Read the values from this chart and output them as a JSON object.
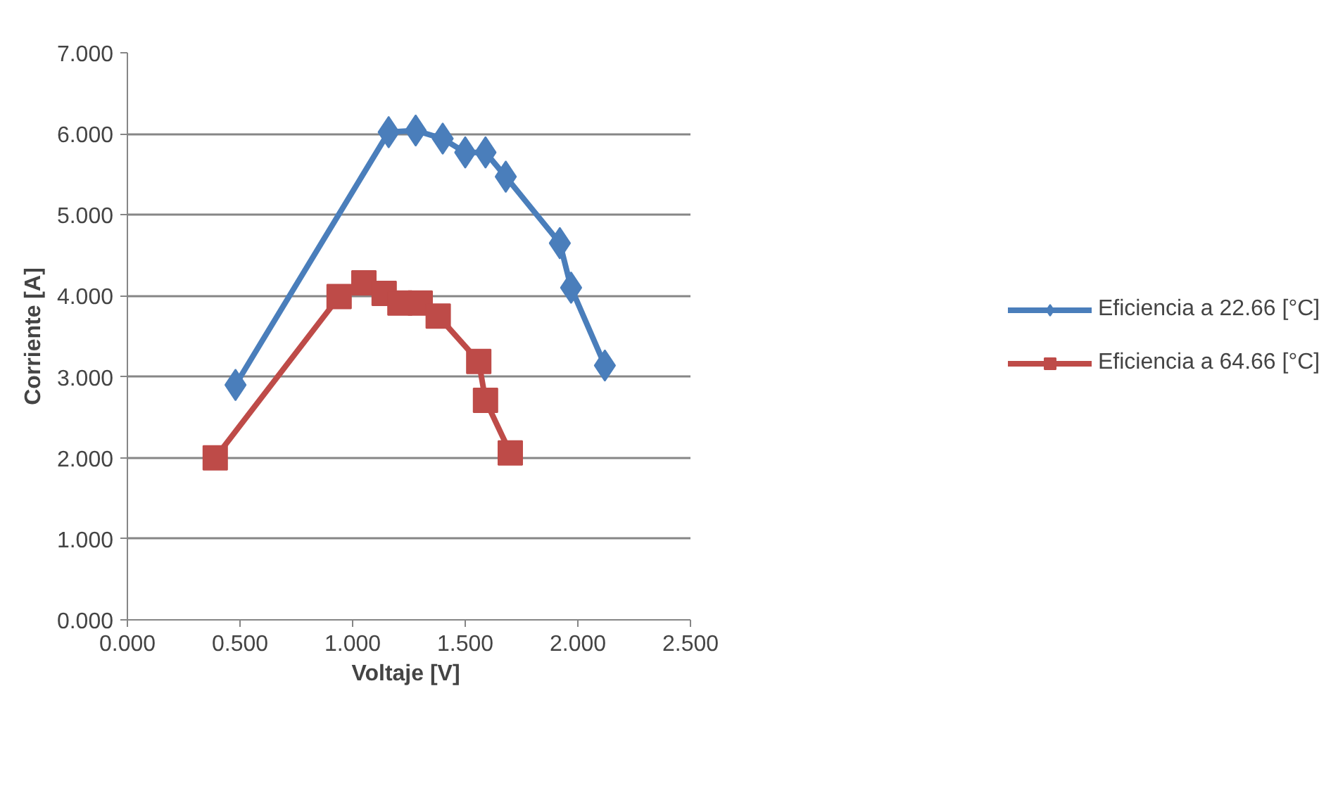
{
  "chart_data": {
    "type": "line",
    "xlabel": "Voltaje  [V]",
    "ylabel": "Corriente [A]",
    "xlim": [
      0,
      2.5
    ],
    "ylim": [
      0,
      7
    ],
    "xticks": [
      {
        "value": 0,
        "label": "0.000"
      },
      {
        "value": 0.5,
        "label": "0.500"
      },
      {
        "value": 1,
        "label": "1.000"
      },
      {
        "value": 1.5,
        "label": "1.500"
      },
      {
        "value": 2,
        "label": "2.000"
      },
      {
        "value": 2.5,
        "label": "2.500"
      }
    ],
    "yticks": [
      {
        "value": 0,
        "label": "0.000"
      },
      {
        "value": 1,
        "label": "1.000"
      },
      {
        "value": 2,
        "label": "2.000"
      },
      {
        "value": 3,
        "label": "3.000"
      },
      {
        "value": 4,
        "label": "4.000"
      },
      {
        "value": 5,
        "label": "5.000"
      },
      {
        "value": 6,
        "label": "6.000"
      },
      {
        "value": 7,
        "label": "7.000"
      }
    ],
    "grid": "y",
    "legend": "right",
    "series": [
      {
        "name": "Eficiencia a 22.66 [°C]",
        "color": "#4a7ebb",
        "marker": "diamond",
        "x": [
          0.48,
          1.16,
          1.28,
          1.4,
          1.5,
          1.59,
          1.68,
          1.92,
          1.97,
          2.12
        ],
        "values": [
          2.9,
          6.02,
          6.04,
          5.94,
          5.77,
          5.77,
          5.47,
          4.65,
          4.1,
          3.14
        ]
      },
      {
        "name": "Eficiencia a 64.66 [°C]",
        "color": "#be4b48",
        "marker": "square",
        "x": [
          0.39,
          0.94,
          1.05,
          1.14,
          1.21,
          1.3,
          1.38,
          1.56,
          1.59,
          1.7
        ],
        "values": [
          2.0,
          3.99,
          4.16,
          4.03,
          3.91,
          3.91,
          3.75,
          3.19,
          2.71,
          2.06
        ]
      }
    ]
  }
}
